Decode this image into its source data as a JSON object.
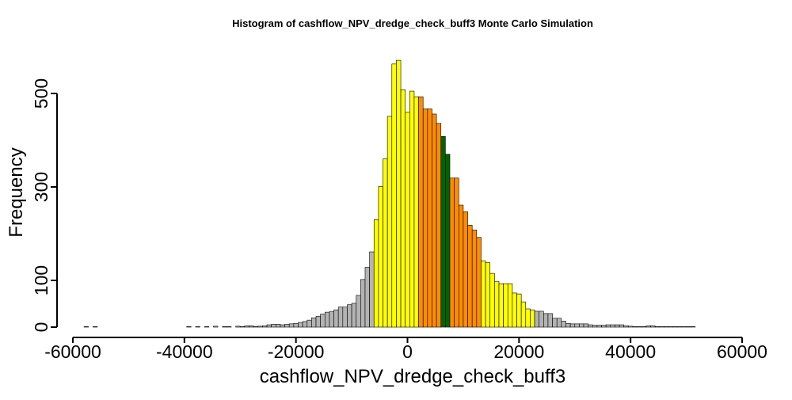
{
  "chart_data": {
    "type": "histogram",
    "title": "Histogram of  cashflow_NPV_dredge_check_buff3  Monte Carlo Simulation",
    "xlabel": "cashflow_NPV_dredge_check_buff3",
    "ylabel": "Frequency",
    "xlim": [
      -60000,
      60000
    ],
    "ylim": [
      0,
      580
    ],
    "xticks": [
      -60000,
      -40000,
      -20000,
      0,
      20000,
      40000,
      60000
    ],
    "xtick_labels": [
      "-60000",
      "-40000",
      "-20000",
      "0",
      "20000",
      "40000",
      "60000"
    ],
    "yticks": [
      0,
      100,
      300,
      500
    ],
    "ytick_labels": [
      "0",
      "100",
      "300",
      "500"
    ],
    "bin_width": 800,
    "x_start": -58000,
    "counts": [
      1,
      0,
      1,
      0,
      0,
      0,
      0,
      0,
      0,
      0,
      0,
      0,
      0,
      0,
      0,
      0,
      0,
      0,
      0,
      0,
      0,
      0,
      0,
      1,
      0,
      1,
      0,
      1,
      0,
      2,
      0,
      1,
      1,
      0,
      2,
      1,
      3,
      3,
      1,
      2,
      3,
      5,
      6,
      6,
      5,
      6,
      7,
      8,
      10,
      12,
      15,
      20,
      23,
      28,
      32,
      33,
      37,
      43,
      43,
      48,
      51,
      68,
      102,
      128,
      161,
      230,
      301,
      360,
      451,
      563,
      571,
      508,
      460,
      505,
      493,
      493,
      467,
      467,
      456,
      436,
      408,
      370,
      319,
      319,
      261,
      247,
      218,
      208,
      192,
      142,
      138,
      115,
      98,
      93,
      93,
      93,
      73,
      71,
      54,
      39,
      37,
      34,
      34,
      29,
      29,
      19,
      19,
      13,
      8,
      7,
      7,
      7,
      7,
      5,
      4,
      4,
      4,
      5,
      5,
      5,
      5,
      3,
      2,
      1,
      1,
      1,
      3,
      3,
      1,
      1,
      1,
      1,
      1,
      1,
      1,
      1,
      1
    ],
    "color_bands": [
      {
        "from": -60000,
        "to": -6000,
        "color": "#b3b3b3"
      },
      {
        "from": -6000,
        "to": 2000,
        "color": "#ffff00"
      },
      {
        "from": 2000,
        "to": 6000,
        "color": "#ff8c00"
      },
      {
        "from": 6000,
        "to": 8000,
        "color": "#006400"
      },
      {
        "from": 8000,
        "to": 13000,
        "color": "#ff8c00"
      },
      {
        "from": 13000,
        "to": 23000,
        "color": "#ffff00"
      },
      {
        "from": 23000,
        "to": 60000,
        "color": "#b3b3b3"
      }
    ],
    "bar_edge_color": "#000000",
    "grid": false,
    "legend": "none"
  }
}
